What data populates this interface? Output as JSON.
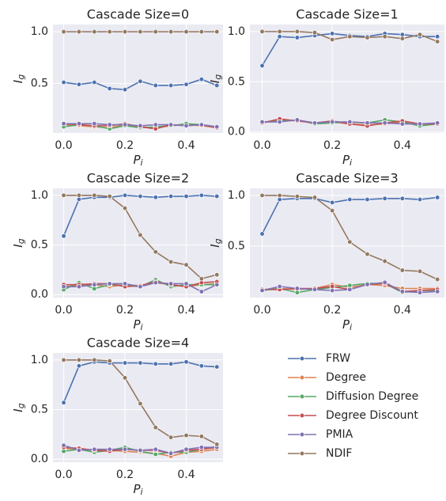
{
  "chart_data": [
    {
      "type": "line",
      "title": "Cascade Size=0",
      "xlabel": {
        "base": "P",
        "sub": "i"
      },
      "ylabel": {
        "base": "I",
        "sub": "g"
      },
      "x": [
        0,
        0.05,
        0.1,
        0.15,
        0.2,
        0.25,
        0.3,
        0.35,
        0.4,
        0.45,
        0.5
      ],
      "xlim": [
        -0.035,
        0.52
      ],
      "ylim": [
        0.02,
        1.07
      ],
      "grid": true,
      "xticks": [
        {
          "value": 0,
          "label": "0.0"
        },
        {
          "value": 0.2,
          "label": "0.2"
        },
        {
          "value": 0.4,
          "label": "0.4"
        }
      ],
      "yticks": [
        {
          "value": 0.5,
          "label": "0.5"
        },
        {
          "value": 1,
          "label": "1.0"
        }
      ],
      "series": [
        {
          "name": "FRW",
          "color": "#4c72b0",
          "values": [
            0.51,
            0.49,
            0.51,
            0.45,
            0.44,
            0.52,
            0.48,
            0.48,
            0.49,
            0.54,
            0.48
          ]
        },
        {
          "name": "Degree",
          "color": "#dd8452",
          "values": [
            0.1,
            0.09,
            0.08,
            0.07,
            0.1,
            0.08,
            0.07,
            0.09,
            0.1,
            0.09,
            0.07
          ]
        },
        {
          "name": "Diffusion Degree",
          "color": "#55a868",
          "values": [
            0.08,
            0.1,
            0.09,
            0.06,
            0.09,
            0.07,
            0.08,
            0.09,
            0.11,
            0.1,
            0.08
          ]
        },
        {
          "name": "Degree Discount",
          "color": "#c44e52",
          "values": [
            0.11,
            0.1,
            0.09,
            0.09,
            0.11,
            0.08,
            0.06,
            0.1,
            0.09,
            0.1,
            0.07
          ]
        },
        {
          "name": "PMIA",
          "color": "#8172b3",
          "values": [
            0.11,
            0.11,
            0.11,
            0.1,
            0.1,
            0.09,
            0.1,
            0.1,
            0.09,
            0.1,
            0.08
          ]
        },
        {
          "name": "NDIF",
          "color": "#937860",
          "values": [
            1,
            1,
            1,
            1,
            1,
            1,
            1,
            1,
            1,
            1,
            1
          ]
        }
      ]
    },
    {
      "type": "line",
      "title": "Cascade Size=1",
      "xlabel": {
        "base": "P",
        "sub": "i"
      },
      "ylabel": {
        "base": "I",
        "sub": "g"
      },
      "x": [
        0,
        0.05,
        0.1,
        0.15,
        0.2,
        0.25,
        0.3,
        0.35,
        0.4,
        0.45,
        0.5
      ],
      "xlim": [
        -0.035,
        0.52
      ],
      "ylim": [
        -0.01,
        1.07
      ],
      "grid": true,
      "xticks": [
        {
          "value": 0,
          "label": "0.0"
        },
        {
          "value": 0.2,
          "label": "0.2"
        },
        {
          "value": 0.4,
          "label": "0.4"
        }
      ],
      "yticks": [
        {
          "value": 0,
          "label": "0.0"
        },
        {
          "value": 0.5,
          "label": "0.5"
        },
        {
          "value": 1,
          "label": "1.0"
        }
      ],
      "series": [
        {
          "name": "FRW",
          "color": "#4c72b0",
          "values": [
            0.66,
            0.95,
            0.94,
            0.96,
            0.98,
            0.96,
            0.95,
            0.98,
            0.97,
            0.95,
            0.95
          ]
        },
        {
          "name": "Degree",
          "color": "#dd8452",
          "values": [
            0.09,
            0.12,
            0.11,
            0.09,
            0.1,
            0.08,
            0.07,
            0.08,
            0.1,
            0.06,
            0.09
          ]
        },
        {
          "name": "Diffusion Degree",
          "color": "#55a868",
          "values": [
            0.1,
            0.11,
            0.12,
            0.08,
            0.09,
            0.1,
            0.09,
            0.12,
            0.1,
            0.06,
            0.08
          ]
        },
        {
          "name": "Degree Discount",
          "color": "#c44e52",
          "values": [
            0.09,
            0.13,
            0.11,
            0.09,
            0.11,
            0.08,
            0.06,
            0.09,
            0.11,
            0.08,
            0.08
          ]
        },
        {
          "name": "PMIA",
          "color": "#8172b3",
          "values": [
            0.1,
            0.1,
            0.12,
            0.09,
            0.1,
            0.1,
            0.09,
            0.09,
            0.08,
            0.08,
            0.09
          ]
        },
        {
          "name": "NDIF",
          "color": "#937860",
          "values": [
            1,
            1,
            1,
            0.99,
            0.92,
            0.95,
            0.94,
            0.95,
            0.93,
            0.97,
            0.9
          ]
        }
      ]
    },
    {
      "type": "line",
      "title": "Cascade Size=2",
      "xlabel": {
        "base": "P",
        "sub": "i"
      },
      "ylabel": {
        "base": "I",
        "sub": "g"
      },
      "x": [
        0,
        0.05,
        0.1,
        0.15,
        0.2,
        0.25,
        0.3,
        0.35,
        0.4,
        0.45,
        0.5
      ],
      "xlim": [
        -0.035,
        0.52
      ],
      "ylim": [
        -0.03,
        1.07
      ],
      "grid": true,
      "xticks": [
        {
          "value": 0,
          "label": "0.0"
        },
        {
          "value": 0.2,
          "label": "0.2"
        },
        {
          "value": 0.4,
          "label": "0.4"
        }
      ],
      "yticks": [
        {
          "value": 0,
          "label": "0.0"
        },
        {
          "value": 0.5,
          "label": "0.5"
        },
        {
          "value": 1,
          "label": "1.0"
        }
      ],
      "series": [
        {
          "name": "FRW",
          "color": "#4c72b0",
          "values": [
            0.59,
            0.96,
            0.98,
            0.98,
            1,
            0.99,
            0.98,
            0.99,
            0.99,
            1,
            0.99
          ]
        },
        {
          "name": "Degree",
          "color": "#dd8452",
          "values": [
            0.08,
            0.09,
            0.1,
            0.08,
            0.1,
            0.09,
            0.12,
            0.1,
            0.08,
            0.1,
            0.11
          ]
        },
        {
          "name": "Diffusion Degree",
          "color": "#55a868",
          "values": [
            0.05,
            0.12,
            0.06,
            0.1,
            0.09,
            0.08,
            0.15,
            0.08,
            0.1,
            0.1,
            0.1
          ]
        },
        {
          "name": "Degree Discount",
          "color": "#c44e52",
          "values": [
            0.1,
            0.1,
            0.11,
            0.11,
            0.08,
            0.09,
            0.13,
            0.1,
            0.08,
            0.12,
            0.13
          ]
        },
        {
          "name": "PMIA",
          "color": "#8172b3",
          "values": [
            0.08,
            0.08,
            0.1,
            0.11,
            0.11,
            0.08,
            0.12,
            0.11,
            0.11,
            0.03,
            0.1
          ]
        },
        {
          "name": "NDIF",
          "color": "#937860",
          "values": [
            1,
            1,
            1,
            0.99,
            0.87,
            0.6,
            0.43,
            0.33,
            0.3,
            0.16,
            0.2
          ]
        }
      ]
    },
    {
      "type": "line",
      "title": "Cascade Size=3",
      "xlabel": {
        "base": "P",
        "sub": "i"
      },
      "ylabel": {
        "base": "I",
        "sub": "g"
      },
      "x": [
        0,
        0.05,
        0.1,
        0.15,
        0.2,
        0.25,
        0.3,
        0.35,
        0.4,
        0.45,
        0.5
      ],
      "xlim": [
        -0.035,
        0.52
      ],
      "ylim": [
        -0.01,
        1.07
      ],
      "grid": true,
      "xticks": [
        {
          "value": 0,
          "label": "0.0"
        },
        {
          "value": 0.2,
          "label": "0.2"
        },
        {
          "value": 0.4,
          "label": "0.4"
        }
      ],
      "yticks": [
        {
          "value": 0.5,
          "label": "0.5"
        },
        {
          "value": 1,
          "label": "1.0"
        }
      ],
      "series": [
        {
          "name": "FRW",
          "color": "#4c72b0",
          "values": [
            0.62,
            0.96,
            0.97,
            0.97,
            0.93,
            0.96,
            0.96,
            0.97,
            0.97,
            0.96,
            0.98
          ]
        },
        {
          "name": "Degree",
          "color": "#dd8452",
          "values": [
            0.07,
            0.08,
            0.07,
            0.08,
            0.12,
            0.09,
            0.12,
            0.11,
            0.08,
            0.08,
            0.08
          ]
        },
        {
          "name": "Diffusion Degree",
          "color": "#55a868",
          "values": [
            0.06,
            0.08,
            0.04,
            0.07,
            0.09,
            0.11,
            0.13,
            0.13,
            0.04,
            0.06,
            0.06
          ]
        },
        {
          "name": "Degree Discount",
          "color": "#c44e52",
          "values": [
            0.07,
            0.07,
            0.08,
            0.08,
            0.1,
            0.07,
            0.12,
            0.13,
            0.05,
            0.06,
            0.07
          ]
        },
        {
          "name": "PMIA",
          "color": "#8172b3",
          "values": [
            0.06,
            0.1,
            0.08,
            0.07,
            0.06,
            0.07,
            0.12,
            0.14,
            0.05,
            0.04,
            0.05
          ]
        },
        {
          "name": "NDIF",
          "color": "#937860",
          "values": [
            1,
            1,
            0.99,
            0.98,
            0.85,
            0.54,
            0.42,
            0.35,
            0.26,
            0.25,
            0.17
          ]
        }
      ]
    },
    {
      "type": "line",
      "title": "Cascade Size=4",
      "xlabel": {
        "base": "P",
        "sub": "i"
      },
      "ylabel": {
        "base": "I",
        "sub": "g"
      },
      "x": [
        0,
        0.05,
        0.1,
        0.15,
        0.2,
        0.25,
        0.3,
        0.35,
        0.4,
        0.45,
        0.5
      ],
      "xlim": [
        -0.035,
        0.52
      ],
      "ylim": [
        -0.03,
        1.07
      ],
      "grid": true,
      "xticks": [
        {
          "value": 0,
          "label": "0.0"
        },
        {
          "value": 0.2,
          "label": "0.2"
        },
        {
          "value": 0.4,
          "label": "0.4"
        }
      ],
      "yticks": [
        {
          "value": 0,
          "label": "0.0"
        },
        {
          "value": 0.5,
          "label": "0.5"
        },
        {
          "value": 1,
          "label": "1.0"
        }
      ],
      "series": [
        {
          "name": "FRW",
          "color": "#4c72b0",
          "values": [
            0.57,
            0.94,
            0.98,
            0.97,
            0.97,
            0.97,
            0.96,
            0.96,
            0.98,
            0.94,
            0.93
          ]
        },
        {
          "name": "Degree",
          "color": "#dd8452",
          "values": [
            0.11,
            0.1,
            0.09,
            0.09,
            0.08,
            0.07,
            0.06,
            0.03,
            0.07,
            0.08,
            0.1
          ]
        },
        {
          "name": "Diffusion Degree",
          "color": "#55a868",
          "values": [
            0.08,
            0.1,
            0.07,
            0.09,
            0.12,
            0.08,
            0.05,
            0.07,
            0.07,
            0.1,
            0.13
          ]
        },
        {
          "name": "Degree Discount",
          "color": "#c44e52",
          "values": [
            0.12,
            0.11,
            0.09,
            0.08,
            0.1,
            0.09,
            0.09,
            0.06,
            0.09,
            0.1,
            0.12
          ]
        },
        {
          "name": "PMIA",
          "color": "#8172b3",
          "values": [
            0.14,
            0.09,
            0.1,
            0.1,
            0.1,
            0.09,
            0.1,
            0.06,
            0.1,
            0.12,
            0.12
          ]
        },
        {
          "name": "NDIF",
          "color": "#937860",
          "values": [
            1,
            1,
            1,
            0.99,
            0.82,
            0.56,
            0.32,
            0.22,
            0.24,
            0.23,
            0.15
          ]
        }
      ]
    }
  ]
}
